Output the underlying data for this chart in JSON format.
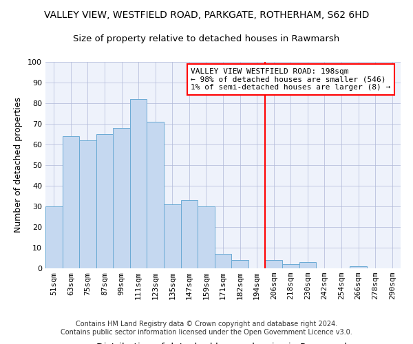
{
  "title": "VALLEY VIEW, WESTFIELD ROAD, PARKGATE, ROTHERHAM, S62 6HD",
  "subtitle": "Size of property relative to detached houses in Rawmarsh",
  "xlabel": "Distribution of detached houses by size in Rawmarsh",
  "ylabel": "Number of detached properties",
  "bar_labels": [
    "51sqm",
    "63sqm",
    "75sqm",
    "87sqm",
    "99sqm",
    "111sqm",
    "123sqm",
    "135sqm",
    "147sqm",
    "159sqm",
    "171sqm",
    "182sqm",
    "194sqm",
    "206sqm",
    "218sqm",
    "230sqm",
    "242sqm",
    "254sqm",
    "266sqm",
    "278sqm",
    "290sqm"
  ],
  "bar_values": [
    30,
    64,
    62,
    65,
    68,
    82,
    71,
    31,
    33,
    30,
    7,
    4,
    0,
    4,
    2,
    3,
    0,
    0,
    1,
    0,
    0
  ],
  "bar_color": "#c5d8f0",
  "bar_edge_color": "#6aaad4",
  "background_color": "#eef2fb",
  "grid_color": "#b0b8d8",
  "vline_color": "red",
  "annotation_text": "VALLEY VIEW WESTFIELD ROAD: 198sqm\n← 98% of detached houses are smaller (546)\n1% of semi-detached houses are larger (8) →",
  "annotation_box_edge_color": "red",
  "annotation_box_bg": "white",
  "ylim": [
    0,
    100
  ],
  "yticks": [
    0,
    10,
    20,
    30,
    40,
    50,
    60,
    70,
    80,
    90,
    100
  ],
  "footer_line1": "Contains HM Land Registry data © Crown copyright and database right 2024.",
  "footer_line2": "Contains public sector information licensed under the Open Government Licence v3.0.",
  "title_fontsize": 10,
  "subtitle_fontsize": 9.5,
  "xlabel_fontsize": 10,
  "ylabel_fontsize": 9,
  "tick_fontsize": 8,
  "annotation_fontsize": 8,
  "footer_fontsize": 7
}
